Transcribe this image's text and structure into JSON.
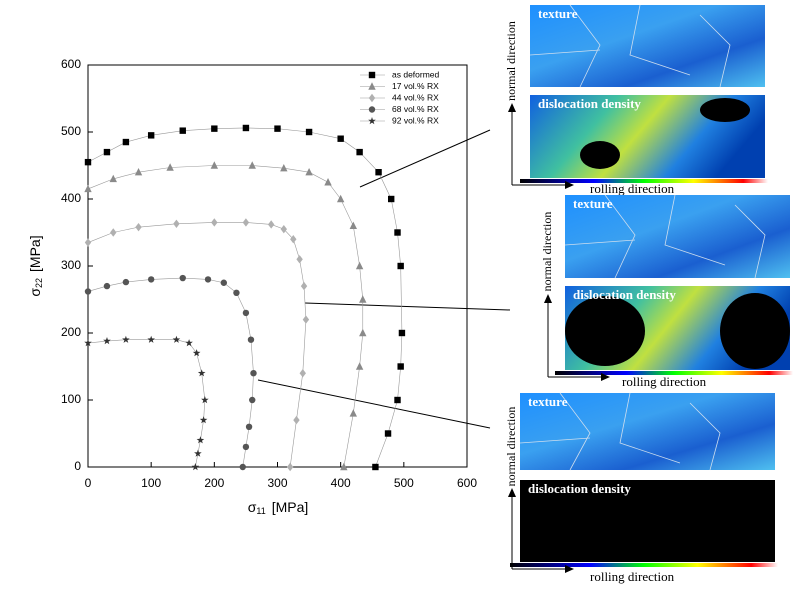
{
  "chart_data": {
    "type": "line",
    "x_label": {
      "symbol": "σ",
      "sub": "11",
      "unit": "[MPa]"
    },
    "y_label": {
      "symbol": "σ",
      "sub": "22",
      "unit": "[MPa]"
    },
    "xlim": [
      0,
      600
    ],
    "ylim": [
      0,
      600
    ],
    "xticks": [
      0,
      100,
      200,
      300,
      400,
      500,
      600
    ],
    "yticks": [
      0,
      100,
      200,
      300,
      400,
      500,
      600
    ],
    "legend": "upper right",
    "series": [
      {
        "name": "as deformed",
        "color": "#000000",
        "marker": "square",
        "x": [
          0,
          30,
          60,
          100,
          150,
          200,
          250,
          300,
          350,
          400,
          430,
          460,
          480,
          490,
          495,
          497,
          495,
          490,
          475,
          455
        ],
        "values": [
          455,
          470,
          485,
          495,
          502,
          505,
          506,
          505,
          500,
          490,
          470,
          440,
          400,
          350,
          300,
          200,
          150,
          100,
          50,
          0
        ]
      },
      {
        "name": "17 vol.% RX",
        "color": "#8a8a8a",
        "marker": "triangle",
        "x": [
          0,
          40,
          80,
          130,
          200,
          260,
          310,
          350,
          380,
          400,
          420,
          430,
          435,
          435,
          430,
          420,
          405
        ],
        "values": [
          415,
          430,
          440,
          447,
          450,
          450,
          446,
          440,
          425,
          400,
          360,
          300,
          250,
          200,
          150,
          80,
          0
        ]
      },
      {
        "name": "44 vol.% RX",
        "color": "#b0b0b0",
        "marker": "diamond",
        "x": [
          0,
          40,
          80,
          140,
          200,
          250,
          290,
          310,
          325,
          335,
          342,
          345,
          340,
          330,
          320
        ],
        "values": [
          335,
          350,
          358,
          363,
          365,
          365,
          362,
          355,
          340,
          310,
          270,
          220,
          140,
          70,
          0
        ]
      },
      {
        "name": "68 vol.% RX",
        "color": "#555555",
        "marker": "circle",
        "x": [
          0,
          30,
          60,
          100,
          150,
          190,
          215,
          235,
          250,
          258,
          262,
          260,
          255,
          250,
          245
        ],
        "values": [
          262,
          270,
          276,
          280,
          282,
          280,
          275,
          260,
          230,
          190,
          140,
          100,
          60,
          30,
          0
        ]
      },
      {
        "name": "92 vol.% RX",
        "color": "#333333",
        "marker": "star",
        "x": [
          0,
          30,
          60,
          100,
          140,
          160,
          172,
          180,
          185,
          183,
          178,
          174,
          170
        ],
        "values": [
          185,
          188,
          190,
          190,
          190,
          185,
          170,
          140,
          100,
          70,
          40,
          20,
          0
        ]
      }
    ]
  },
  "panels": [
    {
      "texture_label": "texture",
      "density_label": "dislocation density",
      "normal_label": "normal direction",
      "rolling_label": "rolling direction"
    },
    {
      "texture_label": "texture",
      "density_label": "dislocation density",
      "normal_label": "normal direction",
      "rolling_label": "rolling direction"
    },
    {
      "texture_label": "texture",
      "density_label": "dislocation density",
      "normal_label": "normal direction",
      "rolling_label": "rolling direction"
    }
  ]
}
